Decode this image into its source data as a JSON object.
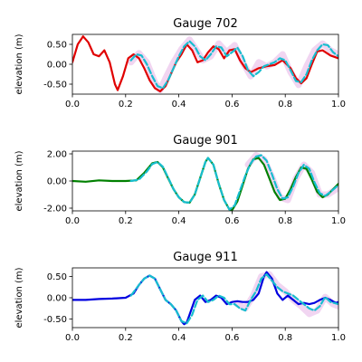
{
  "chart_data": [
    {
      "type": "line",
      "title": "Gauge 702",
      "xlabel": "",
      "ylabel": "elevation (m)",
      "xlim": [
        0.0,
        1.0
      ],
      "ylim": [
        -0.75,
        0.75
      ],
      "xticks": [
        "0.0",
        "0.2",
        "0.4",
        "0.6",
        "0.8",
        "1.0"
      ],
      "yticks": [
        "-0.50",
        "0.00",
        "0.50"
      ],
      "ytick_values": [
        -0.5,
        0.0,
        0.5
      ],
      "grid": false,
      "series": [
        {
          "color": "#f0d0f0",
          "style": "band",
          "x": [
            0.22,
            0.25,
            0.28,
            0.31,
            0.33,
            0.35,
            0.38,
            0.41,
            0.44,
            0.47,
            0.49,
            0.52,
            0.55,
            0.58,
            0.61,
            0.64,
            0.67,
            0.7,
            0.73,
            0.76,
            0.79,
            0.82,
            0.85,
            0.88,
            0.91,
            0.94,
            0.97,
            1.0
          ],
          "y": [
            0.05,
            0.28,
            0.05,
            -0.45,
            -0.65,
            -0.35,
            0.05,
            0.38,
            0.62,
            0.32,
            0.1,
            0.2,
            0.52,
            0.3,
            0.48,
            0.05,
            -0.3,
            0.05,
            -0.05,
            0.05,
            0.25,
            -0.2,
            -0.52,
            -0.05,
            0.35,
            0.52,
            0.35,
            0.25
          ]
        },
        {
          "color": "#e00000",
          "style": "solid",
          "x": [
            0.0,
            0.02,
            0.04,
            0.06,
            0.08,
            0.1,
            0.12,
            0.14,
            0.16,
            0.17,
            0.19,
            0.21,
            0.23,
            0.25,
            0.27,
            0.29,
            0.31,
            0.33,
            0.35,
            0.37,
            0.39,
            0.41,
            0.43,
            0.45,
            0.47,
            0.49,
            0.51,
            0.53,
            0.55,
            0.57,
            0.59,
            0.61,
            0.63,
            0.65,
            0.67,
            0.7,
            0.73,
            0.76,
            0.79,
            0.82,
            0.84,
            0.86,
            0.88,
            0.9,
            0.92,
            0.94,
            0.97,
            1.0
          ],
          "y": [
            0.05,
            0.5,
            0.7,
            0.55,
            0.25,
            0.2,
            0.35,
            0.05,
            -0.5,
            -0.65,
            -0.3,
            0.15,
            0.25,
            0.15,
            -0.1,
            -0.4,
            -0.6,
            -0.68,
            -0.55,
            -0.25,
            0.05,
            0.25,
            0.5,
            0.35,
            0.05,
            0.1,
            0.3,
            0.45,
            0.38,
            0.15,
            0.35,
            0.38,
            0.1,
            -0.1,
            -0.2,
            -0.1,
            -0.05,
            -0.02,
            0.1,
            -0.1,
            -0.35,
            -0.48,
            -0.35,
            0.0,
            0.32,
            0.35,
            0.22,
            0.15
          ]
        },
        {
          "color": "#17becf",
          "style": "dashed",
          "x": [
            0.22,
            0.24,
            0.26,
            0.28,
            0.3,
            0.32,
            0.34,
            0.36,
            0.38,
            0.4,
            0.42,
            0.44,
            0.46,
            0.48,
            0.5,
            0.52,
            0.54,
            0.56,
            0.58,
            0.6,
            0.62,
            0.64,
            0.66,
            0.68,
            0.7,
            0.72,
            0.74,
            0.76,
            0.78,
            0.8,
            0.82,
            0.84,
            0.86,
            0.88,
            0.9,
            0.92,
            0.94,
            0.96,
            0.98,
            1.0
          ],
          "y": [
            0.1,
            0.25,
            0.22,
            0.0,
            -0.3,
            -0.55,
            -0.6,
            -0.4,
            -0.1,
            0.2,
            0.45,
            0.58,
            0.45,
            0.2,
            0.1,
            0.25,
            0.45,
            0.42,
            0.2,
            0.3,
            0.42,
            0.2,
            -0.15,
            -0.3,
            -0.2,
            -0.05,
            0.0,
            0.05,
            0.15,
            0.1,
            -0.15,
            -0.42,
            -0.45,
            -0.25,
            0.1,
            0.35,
            0.5,
            0.48,
            0.3,
            0.2
          ]
        }
      ]
    },
    {
      "type": "line",
      "title": "Gauge 901",
      "xlabel": "",
      "ylabel": "elevation (m)",
      "xlim": [
        0.0,
        1.0
      ],
      "ylim": [
        -2.2,
        2.2
      ],
      "xticks": [
        "0.0",
        "0.2",
        "0.4",
        "0.6",
        "0.8",
        "1.0"
      ],
      "yticks": [
        "-2.00",
        "0.00",
        "2.00"
      ],
      "ytick_values": [
        -2.0,
        0.0,
        2.0
      ],
      "grid": false,
      "series": [
        {
          "color": "#f0d0f0",
          "style": "band",
          "x": [
            0.66,
            0.69,
            0.72,
            0.75,
            0.78,
            0.81,
            0.84,
            0.87,
            0.9,
            0.93,
            0.96,
            1.0
          ],
          "y": [
            1.2,
            1.9,
            1.6,
            0.3,
            -1.2,
            -1.4,
            0.2,
            1.2,
            0.6,
            -1.0,
            -1.0,
            -0.5
          ]
        },
        {
          "color": "#008000",
          "style": "solid",
          "x": [
            0.0,
            0.05,
            0.1,
            0.15,
            0.2,
            0.24,
            0.27,
            0.3,
            0.32,
            0.34,
            0.36,
            0.38,
            0.4,
            0.42,
            0.44,
            0.46,
            0.48,
            0.5,
            0.51,
            0.53,
            0.55,
            0.57,
            0.59,
            0.6,
            0.62,
            0.64,
            0.66,
            0.68,
            0.7,
            0.72,
            0.74,
            0.76,
            0.78,
            0.8,
            0.82,
            0.84,
            0.86,
            0.88,
            0.9,
            0.92,
            0.94,
            0.96,
            0.98,
            1.0
          ],
          "y": [
            0.0,
            -0.05,
            0.05,
            0.0,
            0.0,
            0.05,
            0.6,
            1.3,
            1.4,
            1.0,
            0.2,
            -0.6,
            -1.2,
            -1.55,
            -1.6,
            -1.0,
            0.2,
            1.4,
            1.7,
            1.2,
            -0.2,
            -1.4,
            -2.1,
            -2.15,
            -1.5,
            -0.3,
            0.9,
            1.6,
            1.7,
            1.2,
            0.2,
            -0.8,
            -1.4,
            -1.3,
            -0.6,
            0.3,
            1.0,
            0.9,
            0.1,
            -0.8,
            -1.2,
            -1.0,
            -0.6,
            -0.2
          ]
        },
        {
          "color": "#17becf",
          "style": "dashed",
          "x": [
            0.22,
            0.25,
            0.28,
            0.3,
            0.32,
            0.34,
            0.36,
            0.38,
            0.4,
            0.42,
            0.44,
            0.46,
            0.48,
            0.5,
            0.51,
            0.53,
            0.55,
            0.57,
            0.59,
            0.61,
            0.63,
            0.65,
            0.67,
            0.69,
            0.71,
            0.73,
            0.75,
            0.77,
            0.79,
            0.81,
            0.83,
            0.85,
            0.87,
            0.89,
            0.91,
            0.93,
            0.95,
            0.97,
            1.0
          ],
          "y": [
            0.0,
            0.1,
            0.7,
            1.25,
            1.4,
            1.05,
            0.25,
            -0.6,
            -1.2,
            -1.55,
            -1.6,
            -1.0,
            0.2,
            1.4,
            1.7,
            1.2,
            -0.2,
            -1.4,
            -2.1,
            -1.8,
            -0.7,
            0.4,
            1.3,
            1.8,
            1.9,
            1.5,
            0.5,
            -0.6,
            -1.3,
            -1.2,
            -0.4,
            0.6,
            1.2,
            0.9,
            -0.1,
            -0.9,
            -1.1,
            -0.8,
            -0.3
          ]
        }
      ]
    },
    {
      "type": "line",
      "title": "Gauge 911",
      "xlabel": "",
      "ylabel": "elevation (m)",
      "xlim": [
        0.0,
        1.0
      ],
      "ylim": [
        -0.7,
        0.7
      ],
      "xticks": [
        "0.0",
        "0.2",
        "0.4",
        "0.6",
        "0.8",
        "1.0"
      ],
      "yticks": [
        "-0.50",
        "0.00",
        "0.50"
      ],
      "ytick_values": [
        -0.5,
        0.0,
        0.5
      ],
      "grid": false,
      "series": [
        {
          "color": "#f0d0f0",
          "style": "band",
          "x": [
            0.62,
            0.65,
            0.68,
            0.71,
            0.74,
            0.77,
            0.8,
            0.83,
            0.86,
            0.89,
            0.92,
            0.95,
            0.98,
            1.0
          ],
          "y": [
            -0.15,
            -0.25,
            0.05,
            0.5,
            0.55,
            0.3,
            0.15,
            -0.05,
            -0.2,
            -0.38,
            -0.3,
            0.02,
            -0.15,
            -0.2
          ]
        },
        {
          "color": "#0000e0",
          "style": "solid",
          "x": [
            0.0,
            0.05,
            0.1,
            0.15,
            0.2,
            0.23,
            0.25,
            0.27,
            0.29,
            0.31,
            0.33,
            0.35,
            0.37,
            0.39,
            0.41,
            0.42,
            0.43,
            0.44,
            0.46,
            0.48,
            0.5,
            0.52,
            0.54,
            0.56,
            0.58,
            0.6,
            0.62,
            0.64,
            0.66,
            0.68,
            0.7,
            0.72,
            0.73,
            0.75,
            0.77,
            0.79,
            0.81,
            0.83,
            0.85,
            0.87,
            0.89,
            0.91,
            0.93,
            0.95,
            0.97,
            0.99,
            1.0
          ],
          "y": [
            -0.05,
            -0.05,
            -0.03,
            -0.02,
            0.0,
            0.1,
            0.3,
            0.45,
            0.52,
            0.45,
            0.2,
            -0.05,
            -0.15,
            -0.3,
            -0.55,
            -0.62,
            -0.58,
            -0.4,
            -0.05,
            0.05,
            -0.1,
            -0.05,
            0.05,
            0.0,
            -0.15,
            -0.1,
            -0.08,
            -0.1,
            -0.1,
            -0.05,
            0.1,
            0.5,
            0.6,
            0.45,
            0.1,
            -0.05,
            0.05,
            -0.05,
            -0.15,
            -0.12,
            -0.15,
            -0.12,
            -0.05,
            0.0,
            -0.05,
            -0.12,
            -0.1
          ]
        },
        {
          "color": "#17becf",
          "style": "dashed",
          "x": [
            0.22,
            0.25,
            0.27,
            0.29,
            0.31,
            0.33,
            0.35,
            0.37,
            0.39,
            0.41,
            0.43,
            0.45,
            0.47,
            0.49,
            0.51,
            0.53,
            0.55,
            0.57,
            0.59,
            0.61,
            0.63,
            0.65,
            0.67,
            0.69,
            0.71,
            0.73,
            0.75,
            0.77,
            0.79,
            0.81,
            0.83,
            0.85,
            0.87,
            0.89,
            0.91,
            0.93,
            0.95,
            0.97,
            1.0
          ],
          "y": [
            0.05,
            0.3,
            0.45,
            0.52,
            0.45,
            0.2,
            -0.05,
            -0.15,
            -0.3,
            -0.55,
            -0.6,
            -0.4,
            -0.05,
            0.05,
            -0.1,
            -0.05,
            0.05,
            0.0,
            -0.15,
            -0.15,
            -0.25,
            -0.3,
            -0.05,
            0.15,
            0.45,
            0.55,
            0.4,
            0.25,
            0.15,
            0.1,
            0.05,
            -0.05,
            -0.15,
            -0.25,
            -0.3,
            -0.2,
            0.02,
            -0.1,
            -0.15
          ]
        }
      ]
    }
  ]
}
